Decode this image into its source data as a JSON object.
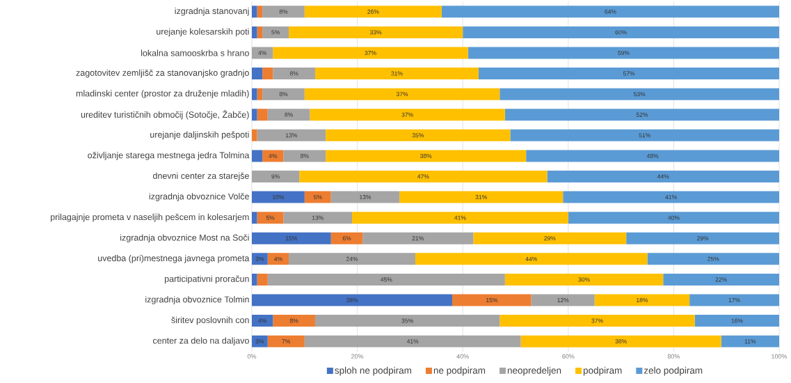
{
  "chart_data": {
    "type": "bar",
    "orientation": "horizontal",
    "stacked": true,
    "categories": [
      "izgradnja stanovanj",
      "urejanje kolesarskih poti",
      "lokalna samooskrba s hrano",
      "zagotovitev zemljišč za stanovanjsko gradnjo",
      "mladinski center (prostor za druženje mladih)",
      "ureditev turističnih območij (Sotočje, Žabče)",
      "urejanje daljinskih pešpoti",
      "oživljanje starega mestnega jedra Tolmina",
      "dnevni center za starejše",
      "izgradnja obvoznice Volče",
      "prilagajnje prometa v naseljih pešcem in kolesarjem",
      "izgradnja obvoznice Most na Soči",
      "uvedba (pri)mestnega javnega prometa",
      "participativni proračun",
      "izgradnja obvoznice Tolmin",
      "širitev poslovnih con",
      "center za delo na daljavo"
    ],
    "series": [
      {
        "name": "sploh ne podpiram",
        "color": "#4472c4",
        "values": [
          1,
          1,
          0,
          2,
          1,
          1,
          0,
          2,
          0,
          10,
          1,
          15,
          3,
          1,
          38,
          4,
          3
        ],
        "value_labels": [
          null,
          null,
          null,
          null,
          null,
          null,
          null,
          null,
          null,
          "10%",
          null,
          "15%",
          "3%",
          null,
          "38%",
          "4%",
          "3%"
        ]
      },
      {
        "name": "ne podpiram",
        "color": "#ed7d31",
        "values": [
          1,
          1,
          0,
          2,
          1,
          2,
          1,
          4,
          0,
          5,
          5,
          6,
          4,
          2,
          15,
          8,
          7
        ],
        "value_labels": [
          null,
          null,
          null,
          null,
          null,
          null,
          null,
          "4%",
          null,
          "5%",
          "5%",
          "6%",
          "4%",
          null,
          "15%",
          "8%",
          "7%"
        ]
      },
      {
        "name": "neopredeljen",
        "color": "#a5a5a5",
        "values": [
          8,
          5,
          4,
          8,
          8,
          8,
          13,
          8,
          9,
          13,
          13,
          21,
          24,
          45,
          12,
          35,
          41
        ],
        "value_labels": [
          "8%",
          "5%",
          "4%",
          "8%",
          "8%",
          "8%",
          "13%",
          "8%",
          "9%",
          "13%",
          "13%",
          "21%",
          "24%",
          "45%",
          "12%",
          "35%",
          "41%"
        ]
      },
      {
        "name": "podpiram",
        "color": "#ffc000",
        "values": [
          26,
          33,
          37,
          31,
          37,
          37,
          35,
          38,
          47,
          31,
          41,
          29,
          44,
          30,
          18,
          37,
          38
        ],
        "value_labels": [
          "26%",
          "33%",
          "37%",
          "31%",
          "37%",
          "37%",
          "35%",
          "38%",
          "47%",
          "31%",
          "41%",
          "29%",
          "44%",
          "30%",
          "18%",
          "37%",
          "38%"
        ]
      },
      {
        "name": "zelo podpiram",
        "color": "#5b9bd5",
        "values": [
          64,
          60,
          59,
          57,
          53,
          52,
          51,
          48,
          44,
          41,
          40,
          29,
          25,
          22,
          17,
          16,
          11
        ],
        "value_labels": [
          "64%",
          "60%",
          "59%",
          "57%",
          "53%",
          "52%",
          "51%",
          "48%",
          "44%",
          "41%",
          "40%",
          "29%",
          "25%",
          "22%",
          "17%",
          "16%",
          "11%"
        ]
      }
    ],
    "xlim": [
      0,
      100
    ],
    "xticks": [
      {
        "value": 0,
        "label": "0%"
      },
      {
        "value": 20,
        "label": "20%"
      },
      {
        "value": 40,
        "label": "40%"
      },
      {
        "value": 60,
        "label": "60%"
      },
      {
        "value": 80,
        "label": "80%"
      },
      {
        "value": 100,
        "label": "100%"
      }
    ],
    "grid": "x",
    "legend": "bottom"
  }
}
